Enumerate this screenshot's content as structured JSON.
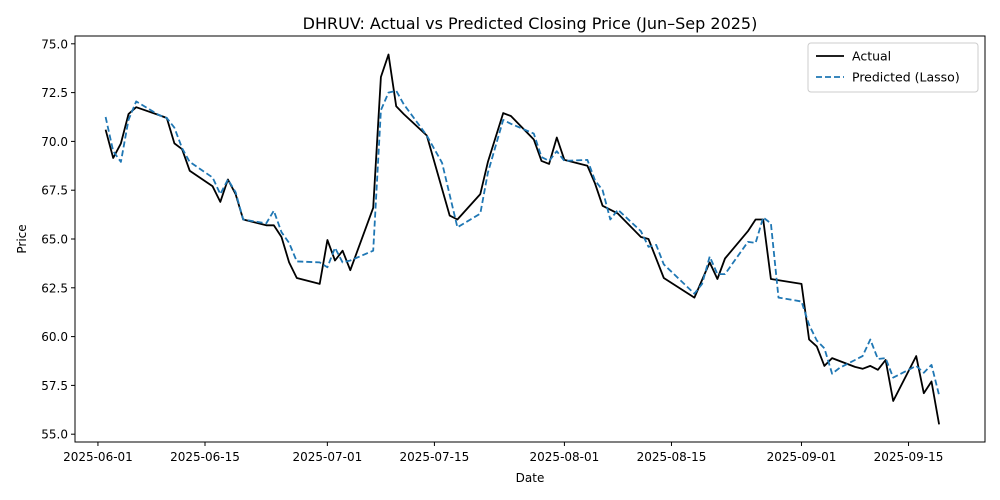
{
  "chart_data": {
    "type": "line",
    "title": "DHRUV: Actual vs Predicted Closing Price (Jun–Sep 2025)",
    "xlabel": "Date",
    "ylabel": "Price",
    "xlim": [
      "2025-05-29",
      "2025-09-25"
    ],
    "ylim": [
      54.6,
      75.4
    ],
    "x_ticks": [
      "2025-06-01",
      "2025-06-15",
      "2025-07-01",
      "2025-07-15",
      "2025-08-01",
      "2025-08-15",
      "2025-09-01",
      "2025-09-15"
    ],
    "y_ticks": [
      55.0,
      57.5,
      60.0,
      62.5,
      65.0,
      67.5,
      70.0,
      72.5,
      75.0
    ],
    "y_tick_labels": [
      "55.0",
      "57.5",
      "60.0",
      "62.5",
      "65.0",
      "67.5",
      "70.0",
      "72.5",
      "75.0"
    ],
    "grid": false,
    "legend_position": "top-right",
    "series": [
      {
        "name": "Actual",
        "color": "#000000",
        "dash": "solid",
        "points": [
          [
            "2025-06-02",
            70.6
          ],
          [
            "2025-06-03",
            69.15
          ],
          [
            "2025-06-04",
            69.9
          ],
          [
            "2025-06-05",
            71.4
          ],
          [
            "2025-06-06",
            71.75
          ],
          [
            "2025-06-09",
            71.35
          ],
          [
            "2025-06-10",
            71.2
          ],
          [
            "2025-06-11",
            69.9
          ],
          [
            "2025-06-12",
            69.6
          ],
          [
            "2025-06-13",
            68.5
          ],
          [
            "2025-06-16",
            67.7
          ],
          [
            "2025-06-17",
            66.9
          ],
          [
            "2025-06-18",
            68.05
          ],
          [
            "2025-06-19",
            67.3
          ],
          [
            "2025-06-20",
            66.0
          ],
          [
            "2025-06-23",
            65.7
          ],
          [
            "2025-06-24",
            65.7
          ],
          [
            "2025-06-25",
            65.1
          ],
          [
            "2025-06-26",
            63.8
          ],
          [
            "2025-06-27",
            63.0
          ],
          [
            "2025-06-30",
            62.7
          ],
          [
            "2025-07-01",
            64.95
          ],
          [
            "2025-07-02",
            63.9
          ],
          [
            "2025-07-03",
            64.4
          ],
          [
            "2025-07-04",
            63.4
          ],
          [
            "2025-07-07",
            66.6
          ],
          [
            "2025-07-08",
            73.3
          ],
          [
            "2025-07-09",
            74.45
          ],
          [
            "2025-07-10",
            71.8
          ],
          [
            "2025-07-11",
            71.4
          ],
          [
            "2025-07-14",
            70.3
          ],
          [
            "2025-07-17",
            66.2
          ],
          [
            "2025-07-18",
            66.0
          ],
          [
            "2025-07-21",
            67.3
          ],
          [
            "2025-07-22",
            68.95
          ],
          [
            "2025-07-24",
            71.45
          ],
          [
            "2025-07-25",
            71.3
          ],
          [
            "2025-07-28",
            70.1
          ],
          [
            "2025-07-29",
            69.0
          ],
          [
            "2025-07-30",
            68.85
          ],
          [
            "2025-07-31",
            70.2
          ],
          [
            "2025-08-01",
            69.05
          ],
          [
            "2025-08-04",
            68.75
          ],
          [
            "2025-08-05",
            67.85
          ],
          [
            "2025-08-06",
            66.7
          ],
          [
            "2025-08-07",
            66.5
          ],
          [
            "2025-08-08",
            66.3
          ],
          [
            "2025-08-11",
            65.1
          ],
          [
            "2025-08-12",
            65.0
          ],
          [
            "2025-08-14",
            63.0
          ],
          [
            "2025-08-18",
            62.0
          ],
          [
            "2025-08-20",
            63.8
          ],
          [
            "2025-08-21",
            62.95
          ],
          [
            "2025-08-22",
            64.0
          ],
          [
            "2025-08-25",
            65.4
          ],
          [
            "2025-08-26",
            66.0
          ],
          [
            "2025-08-27",
            66.0
          ],
          [
            "2025-08-28",
            62.95
          ],
          [
            "2025-09-01",
            62.7
          ],
          [
            "2025-09-02",
            59.85
          ],
          [
            "2025-09-03",
            59.5
          ],
          [
            "2025-09-04",
            58.5
          ],
          [
            "2025-09-05",
            58.9
          ],
          [
            "2025-09-08",
            58.45
          ],
          [
            "2025-09-09",
            58.35
          ],
          [
            "2025-09-10",
            58.5
          ],
          [
            "2025-09-11",
            58.3
          ],
          [
            "2025-09-12",
            58.8
          ],
          [
            "2025-09-13",
            56.7
          ],
          [
            "2025-09-16",
            59.0
          ],
          [
            "2025-09-17",
            57.1
          ],
          [
            "2025-09-18",
            57.7
          ],
          [
            "2025-09-19",
            55.5
          ]
        ]
      },
      {
        "name": "Predicted (Lasso)",
        "color": "#1f77b4",
        "dash": "dashed",
        "points": [
          [
            "2025-06-02",
            71.25
          ],
          [
            "2025-06-03",
            69.5
          ],
          [
            "2025-06-04",
            68.95
          ],
          [
            "2025-06-05",
            71.1
          ],
          [
            "2025-06-06",
            72.05
          ],
          [
            "2025-06-09",
            71.35
          ],
          [
            "2025-06-10",
            71.2
          ],
          [
            "2025-06-11",
            70.7
          ],
          [
            "2025-06-12",
            69.65
          ],
          [
            "2025-06-13",
            68.95
          ],
          [
            "2025-06-16",
            68.15
          ],
          [
            "2025-06-17",
            67.3
          ],
          [
            "2025-06-18",
            68.05
          ],
          [
            "2025-06-19",
            67.4
          ],
          [
            "2025-06-20",
            66.0
          ],
          [
            "2025-06-23",
            65.8
          ],
          [
            "2025-06-24",
            66.45
          ],
          [
            "2025-06-25",
            65.35
          ],
          [
            "2025-06-26",
            64.8
          ],
          [
            "2025-06-27",
            63.85
          ],
          [
            "2025-06-30",
            63.8
          ],
          [
            "2025-07-01",
            63.55
          ],
          [
            "2025-07-02",
            64.55
          ],
          [
            "2025-07-03",
            63.8
          ],
          [
            "2025-07-04",
            63.9
          ],
          [
            "2025-07-07",
            64.4
          ],
          [
            "2025-07-08",
            71.6
          ],
          [
            "2025-07-09",
            72.5
          ],
          [
            "2025-07-10",
            72.6
          ],
          [
            "2025-07-11",
            71.9
          ],
          [
            "2025-07-14",
            70.3
          ],
          [
            "2025-07-16",
            68.9
          ],
          [
            "2025-07-18",
            65.6
          ],
          [
            "2025-07-21",
            66.3
          ],
          [
            "2025-07-22",
            68.4
          ],
          [
            "2025-07-24",
            71.1
          ],
          [
            "2025-07-25",
            70.9
          ],
          [
            "2025-07-28",
            70.4
          ],
          [
            "2025-07-29",
            69.2
          ],
          [
            "2025-07-30",
            69.0
          ],
          [
            "2025-07-31",
            69.5
          ],
          [
            "2025-08-01",
            69.0
          ],
          [
            "2025-08-04",
            69.05
          ],
          [
            "2025-08-05",
            68.0
          ],
          [
            "2025-08-06",
            67.5
          ],
          [
            "2025-08-07",
            66.0
          ],
          [
            "2025-08-08",
            66.5
          ],
          [
            "2025-08-11",
            65.4
          ],
          [
            "2025-08-12",
            64.6
          ],
          [
            "2025-08-13",
            64.7
          ],
          [
            "2025-08-14",
            63.7
          ],
          [
            "2025-08-18",
            62.2
          ],
          [
            "2025-08-19",
            62.7
          ],
          [
            "2025-08-20",
            64.1
          ],
          [
            "2025-08-21",
            63.2
          ],
          [
            "2025-08-22",
            63.2
          ],
          [
            "2025-08-25",
            64.85
          ],
          [
            "2025-08-26",
            64.8
          ],
          [
            "2025-08-27",
            66.1
          ],
          [
            "2025-08-28",
            65.8
          ],
          [
            "2025-08-29",
            62.0
          ],
          [
            "2025-09-01",
            61.8
          ],
          [
            "2025-09-02",
            60.6
          ],
          [
            "2025-09-03",
            59.8
          ],
          [
            "2025-09-04",
            59.4
          ],
          [
            "2025-09-05",
            58.1
          ],
          [
            "2025-09-06",
            58.4
          ],
          [
            "2025-09-08",
            58.8
          ],
          [
            "2025-09-09",
            59.0
          ],
          [
            "2025-09-10",
            59.85
          ],
          [
            "2025-09-11",
            58.85
          ],
          [
            "2025-09-12",
            58.9
          ],
          [
            "2025-09-13",
            57.9
          ],
          [
            "2025-09-15",
            58.3
          ],
          [
            "2025-09-16",
            58.5
          ],
          [
            "2025-09-17",
            58.15
          ],
          [
            "2025-09-18",
            58.55
          ],
          [
            "2025-09-19",
            57.0
          ]
        ]
      }
    ]
  }
}
